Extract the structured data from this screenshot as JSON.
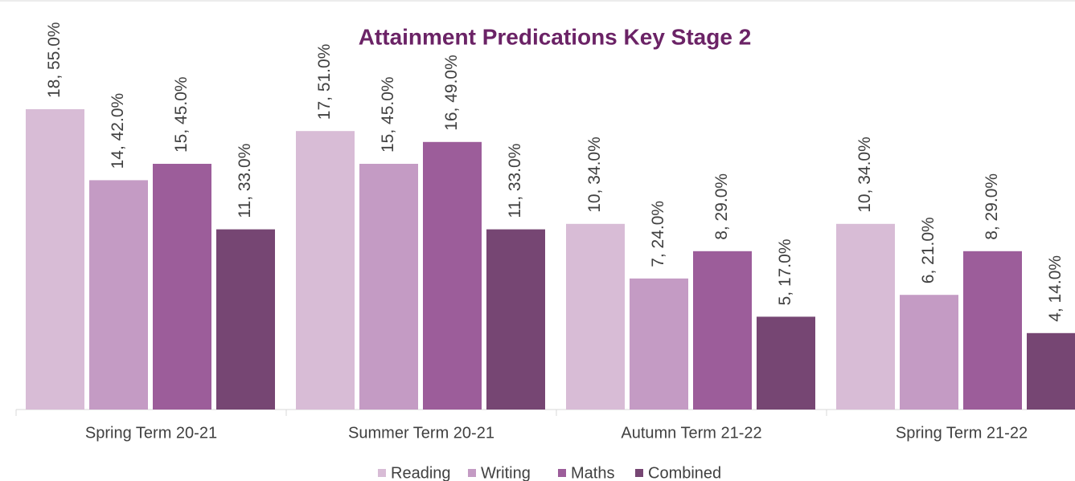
{
  "chart_data": {
    "type": "bar",
    "title": "Attainment Predications Key Stage 2",
    "categories": [
      "Spring Term 20-21",
      "Summer Term 20-21",
      "Autumn Term 21-22",
      "Spring Term 21-22"
    ],
    "series": [
      {
        "name": "Reading",
        "color": "#d8bcd6",
        "values": [
          55,
          51,
          34,
          34
        ],
        "value_labels": [
          "18, 55.0%",
          "17, 51.0%",
          "10, 34.0%",
          "10, 34.0%"
        ]
      },
      {
        "name": "Writing",
        "color": "#c49bc4",
        "values": [
          42,
          45,
          24,
          21
        ],
        "value_labels": [
          "14, 42.0%",
          "15, 45.0%",
          "7, 24.0%",
          "6, 21.0%"
        ]
      },
      {
        "name": "Maths",
        "color": "#9c5d9a",
        "values": [
          45,
          49,
          29,
          29
        ],
        "value_labels": [
          "15, 45.0%",
          "16, 49.0%",
          "8, 29.0%",
          "8, 29.0%"
        ]
      },
      {
        "name": "Combined",
        "color": "#764673",
        "values": [
          33,
          33,
          17,
          14
        ],
        "value_labels": [
          "11, 33.0%",
          "11, 33.0%",
          "5, 17.0%",
          "4, 14.0%"
        ]
      }
    ],
    "ylim": [
      0,
      75
    ],
    "legend": "bottom"
  }
}
